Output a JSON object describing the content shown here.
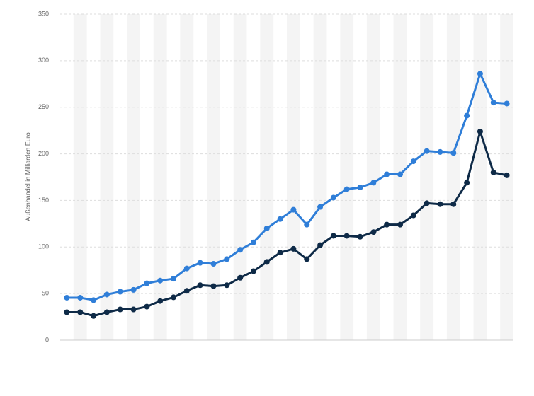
{
  "chart_data": {
    "type": "line",
    "y_label": "Außenhandel in Milliarden Euro",
    "categories": [
      null,
      null,
      null,
      null,
      null,
      null,
      null,
      null,
      null,
      null,
      null,
      null,
      null,
      null,
      null,
      null,
      null,
      null,
      null,
      null,
      null,
      null,
      null,
      null,
      null,
      null,
      null,
      null,
      null,
      null,
      null,
      null,
      null,
      null
    ],
    "series": [
      {
        "color": "#2f7ed8",
        "values": [
          45.6,
          45.6,
          43,
          49,
          52,
          54,
          61,
          64,
          66,
          77,
          83,
          82,
          87,
          97,
          105,
          120,
          130,
          140,
          124,
          143,
          153,
          162,
          164,
          169,
          178,
          178,
          192,
          203,
          202,
          201,
          241,
          286,
          255,
          254
        ]
      },
      {
        "color": "#0e2a47",
        "values": [
          30,
          30,
          26,
          30,
          33,
          33,
          36,
          42,
          46,
          53,
          59,
          58,
          59,
          67,
          74,
          84,
          94,
          98,
          87,
          102,
          112,
          112,
          111,
          116,
          124,
          124,
          134,
          147,
          146,
          146,
          169,
          224,
          180,
          177
        ]
      }
    ],
    "ylim": [
      0,
      350
    ],
    "yticks": [
      0,
      50,
      100,
      150,
      200,
      250,
      300,
      350
    ],
    "grid": true
  }
}
